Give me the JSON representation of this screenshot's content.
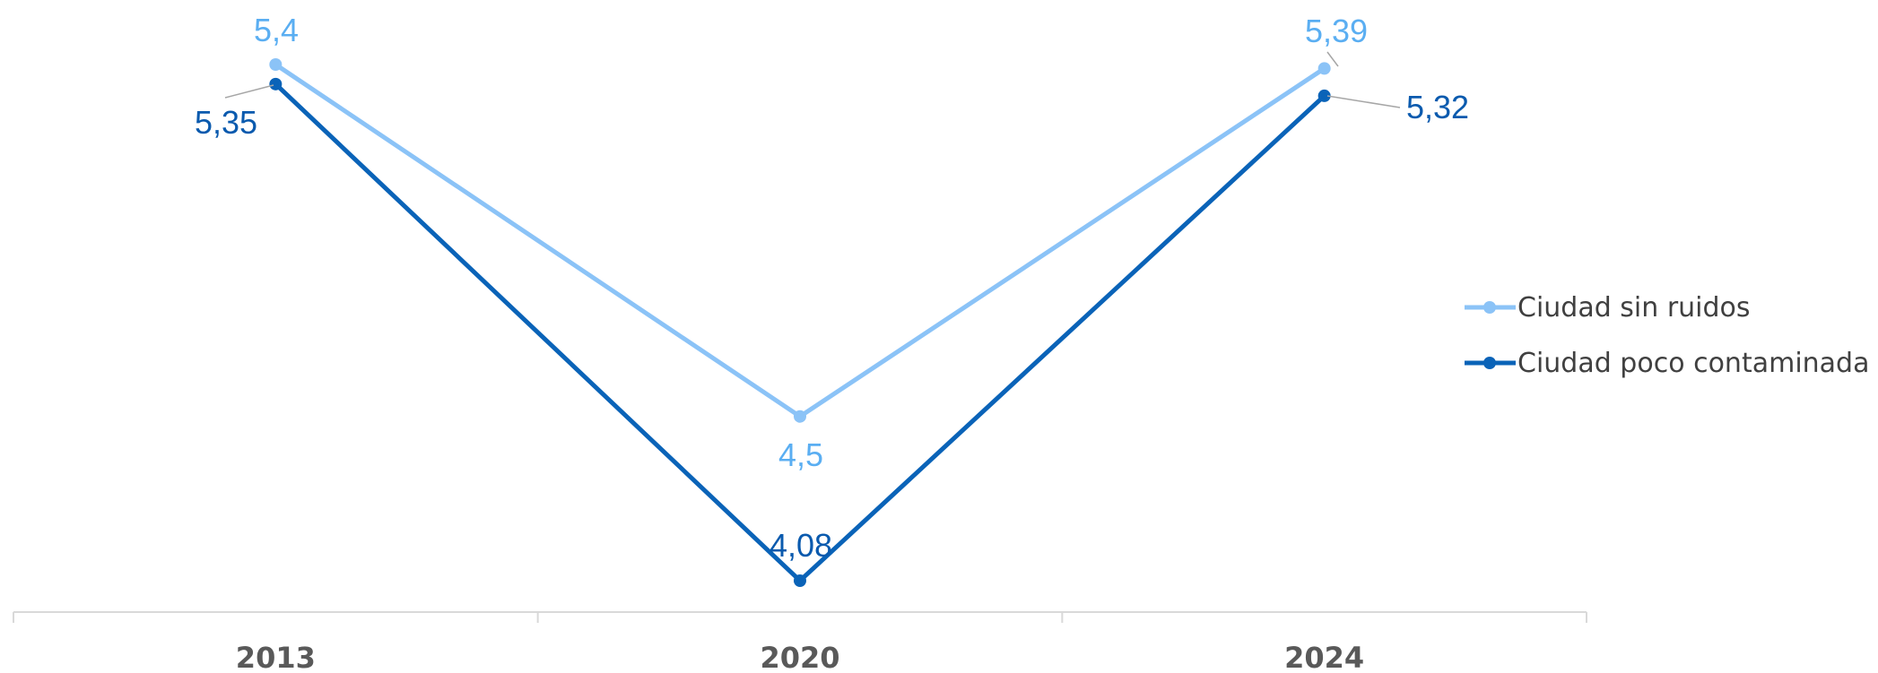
{
  "chart_data": {
    "type": "line",
    "categories": [
      "2013",
      "2020",
      "2024"
    ],
    "series": [
      {
        "name": "Ciudad sin ruidos",
        "values": [
          5.4,
          4.5,
          5.39
        ],
        "labels": [
          "5,4",
          "4,5",
          "5,39"
        ],
        "color": "#8BC3F7",
        "label_color": "#5AAEF2"
      },
      {
        "name": "Ciudad poco contaminada",
        "values": [
          5.35,
          4.08,
          5.32
        ],
        "labels": [
          "5,35",
          "4,08",
          "5,32"
        ],
        "color": "#0A63B8",
        "label_color": "#0A5AAE"
      }
    ],
    "legend_position": "right",
    "grid": false,
    "ylim": [
      4.0,
      5.5
    ]
  }
}
